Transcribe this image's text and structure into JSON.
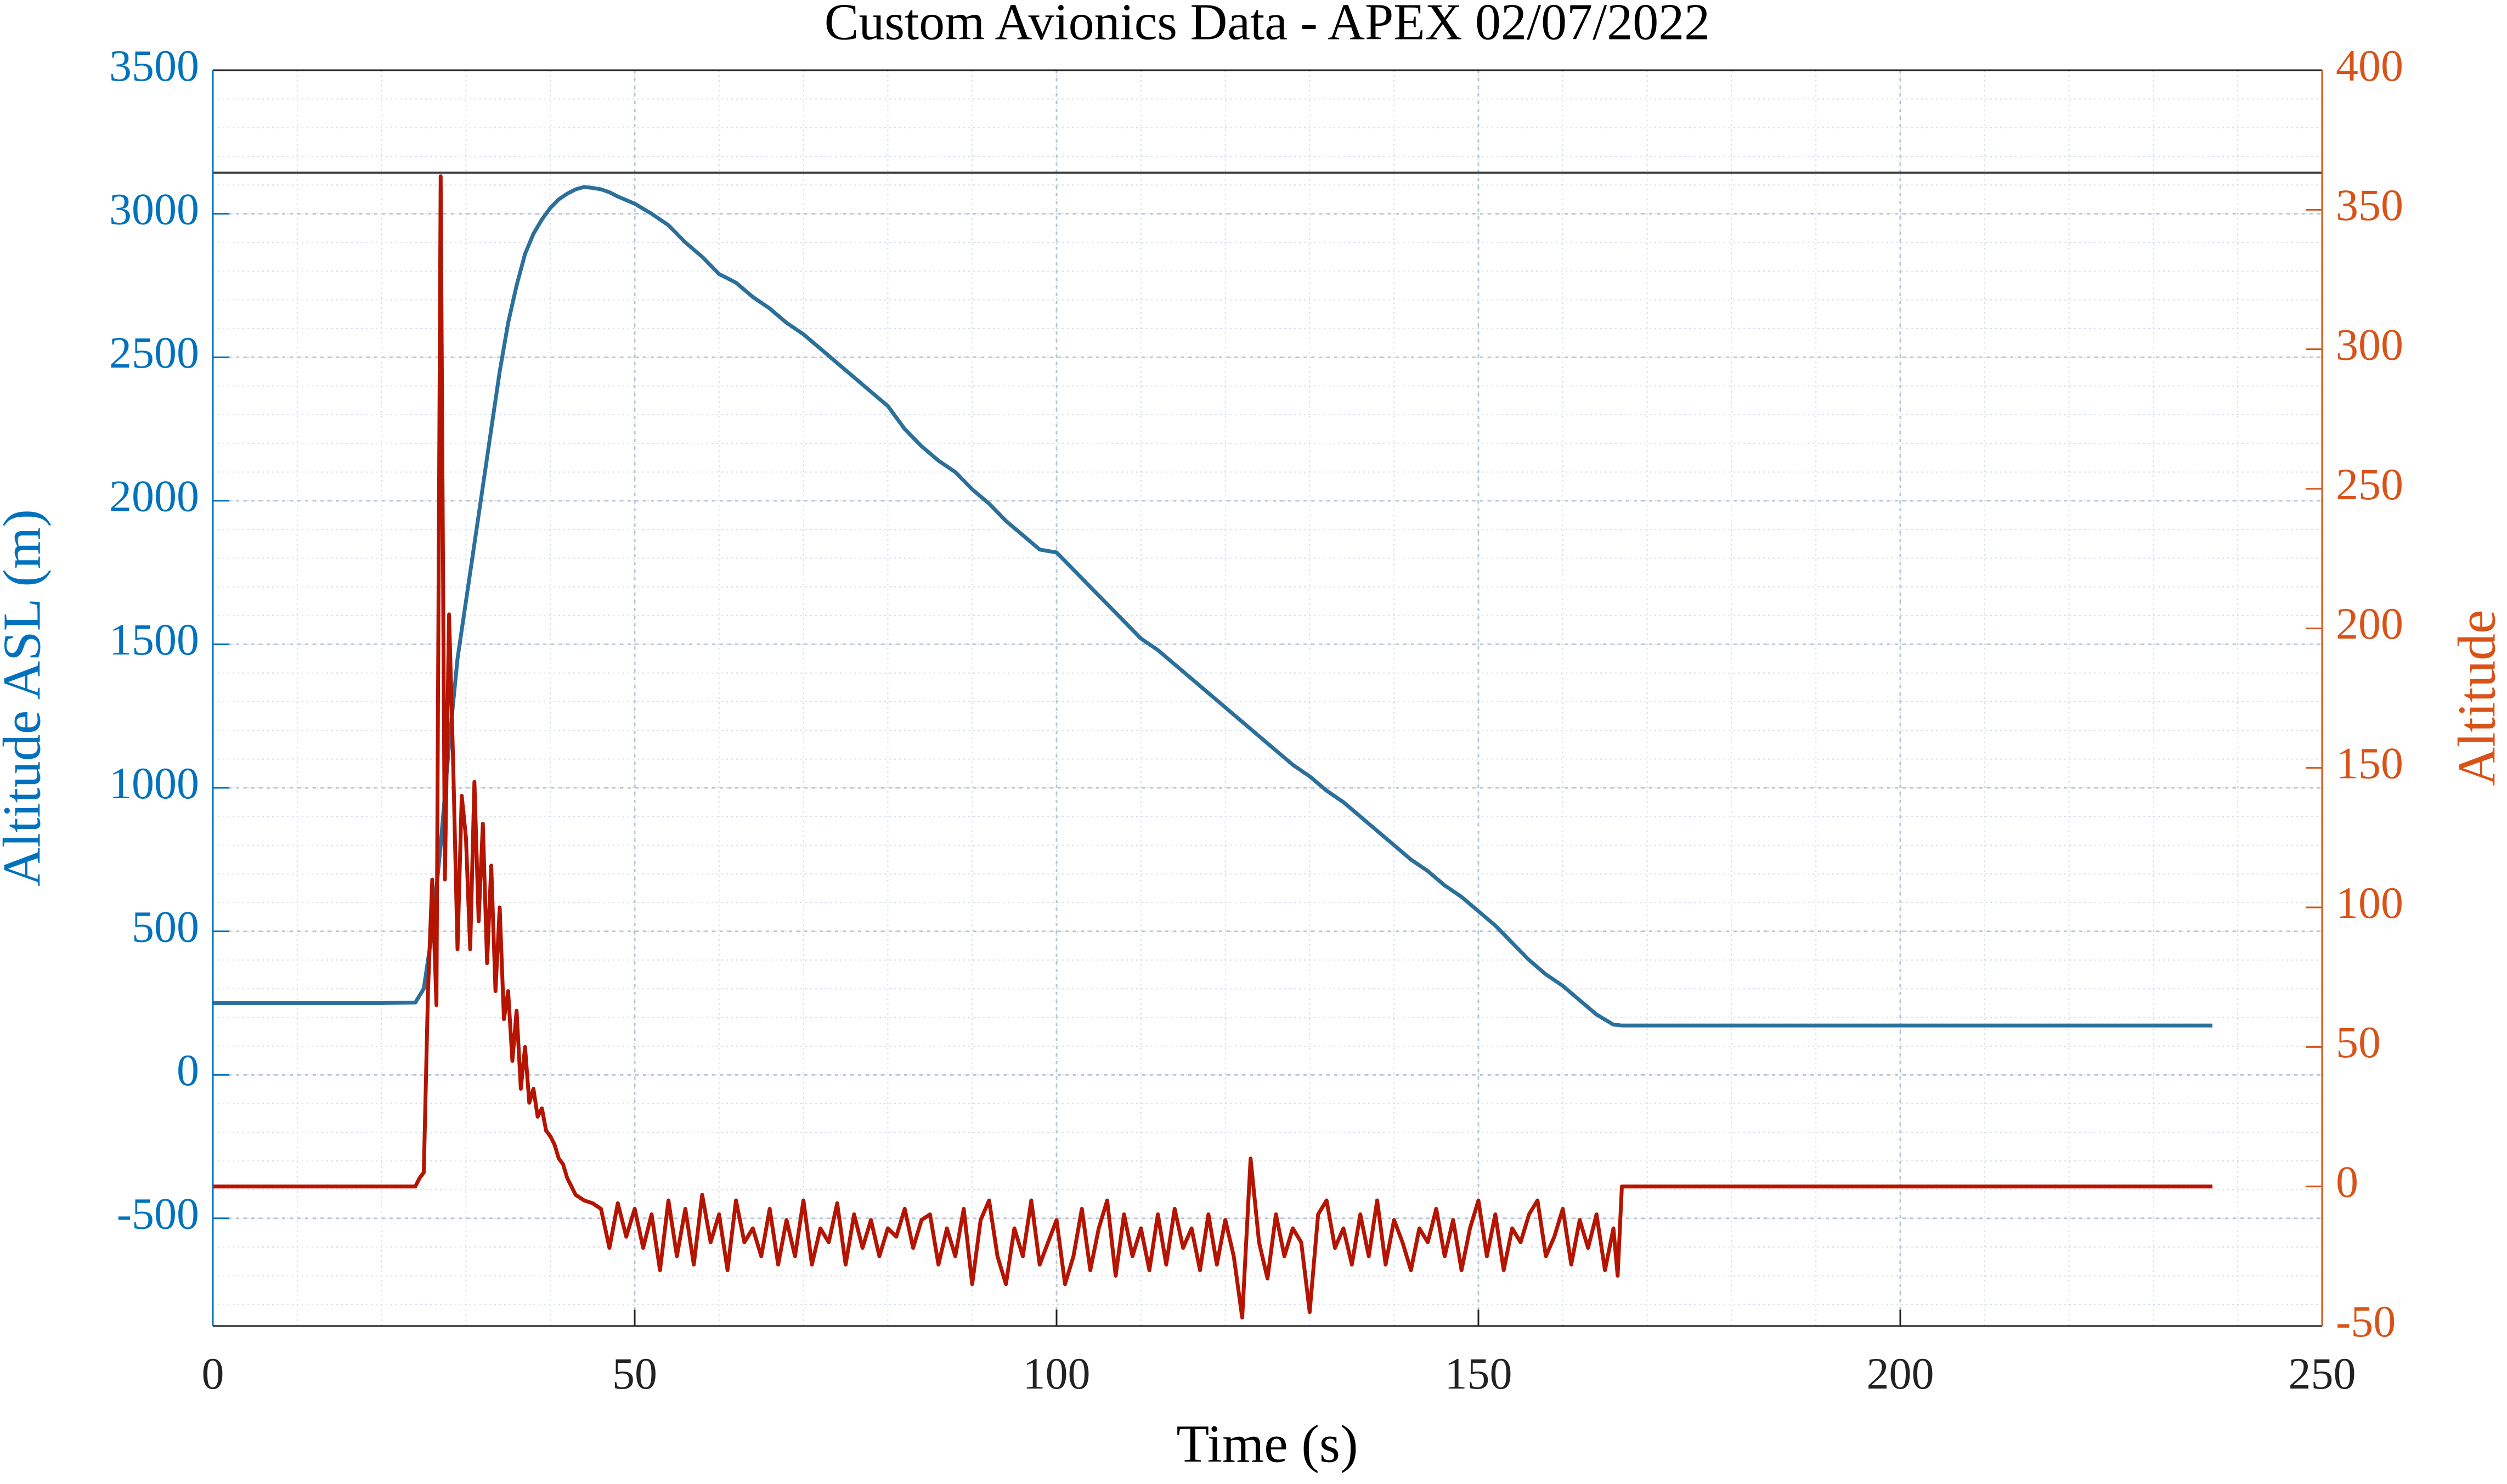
{
  "chart_data": {
    "type": "line",
    "title": "Custom Avionics Data - APEX 02/07/2022",
    "xlabel": "Time (s)",
    "ylabel": "Altitude ASL (m)",
    "y2label": "Altitude",
    "xlim": [
      0,
      250
    ],
    "xticks": [
      0,
      50,
      100,
      150,
      200,
      250
    ],
    "ylim": [
      -875,
      3500
    ],
    "yticks": [
      -500,
      0,
      500,
      1000,
      1500,
      2000,
      2500,
      3000,
      3500
    ],
    "y2lim": [
      -50,
      400
    ],
    "y2ticks": [
      -50,
      0,
      50,
      100,
      150,
      200,
      250,
      300,
      350,
      400
    ],
    "grid": true,
    "minor_grid": true,
    "ycolor": "#0072bd",
    "y2color": "#d95319",
    "reference_line": {
      "value": 3143,
      "color": "#3c3c3c"
    },
    "series": [
      {
        "color": "#2b6f9b",
        "axis": "y",
        "x": [
          0,
          10,
          20,
          24,
          25,
          26,
          27,
          28,
          29,
          30,
          31,
          32,
          33,
          34,
          35,
          36,
          37,
          38,
          39,
          40,
          41,
          42,
          43,
          44,
          45,
          46,
          47,
          48,
          50,
          52,
          54,
          56,
          58,
          60,
          62,
          64,
          66,
          68,
          70,
          72,
          74,
          76,
          78,
          80,
          82,
          84,
          86,
          88,
          90,
          92,
          94,
          96,
          98,
          100,
          102,
          104,
          106,
          108,
          110,
          112,
          114,
          116,
          118,
          120,
          122,
          124,
          126,
          128,
          130,
          132,
          134,
          136,
          138,
          140,
          142,
          144,
          146,
          148,
          150,
          152,
          154,
          156,
          158,
          160,
          162,
          164,
          166,
          167,
          180,
          200,
          220,
          237
        ],
        "values": [
          250,
          250,
          250,
          252,
          300,
          500,
          800,
          1150,
          1450,
          1650,
          1850,
          2050,
          2250,
          2450,
          2620,
          2750,
          2860,
          2930,
          2980,
          3020,
          3050,
          3070,
          3085,
          3093,
          3090,
          3085,
          3075,
          3060,
          3035,
          3000,
          2960,
          2900,
          2850,
          2790,
          2760,
          2710,
          2670,
          2620,
          2580,
          2530,
          2480,
          2430,
          2380,
          2330,
          2250,
          2190,
          2140,
          2100,
          2040,
          1990,
          1930,
          1880,
          1830,
          1820,
          1760,
          1700,
          1640,
          1580,
          1520,
          1480,
          1430,
          1380,
          1330,
          1280,
          1230,
          1180,
          1130,
          1080,
          1040,
          990,
          950,
          900,
          850,
          800,
          750,
          710,
          660,
          620,
          570,
          520,
          460,
          400,
          350,
          310,
          260,
          210,
          175,
          172,
          172,
          172,
          172,
          172
        ]
      },
      {
        "color": "#b51400",
        "axis": "y2",
        "x": [
          0,
          24,
          24.5,
          25,
          25.5,
          26,
          26.5,
          27,
          27.5,
          28,
          28.5,
          29,
          29.5,
          30,
          30.5,
          31,
          31.5,
          32,
          32.5,
          33,
          33.5,
          34,
          34.5,
          35,
          35.5,
          36,
          36.5,
          37,
          37.5,
          38,
          38.5,
          39,
          39.5,
          40,
          40.5,
          41,
          41.5,
          42,
          43,
          44,
          45,
          46,
          47,
          48,
          49,
          50,
          51,
          52,
          53,
          54,
          55,
          56,
          57,
          58,
          59,
          60,
          61,
          62,
          63,
          64,
          65,
          66,
          67,
          68,
          69,
          70,
          71,
          72,
          73,
          74,
          75,
          76,
          77,
          78,
          79,
          80,
          81,
          82,
          83,
          84,
          85,
          86,
          87,
          88,
          89,
          90,
          91,
          92,
          93,
          94,
          95,
          96,
          97,
          98,
          99,
          100,
          101,
          102,
          103,
          104,
          105,
          106,
          107,
          108,
          109,
          110,
          111,
          112,
          113,
          114,
          115,
          116,
          117,
          118,
          119,
          120,
          121,
          122,
          123,
          124,
          125,
          126,
          127,
          128,
          129,
          130,
          131,
          132,
          133,
          134,
          135,
          136,
          137,
          138,
          139,
          140,
          141,
          142,
          143,
          144,
          145,
          146,
          147,
          148,
          149,
          150,
          151,
          152,
          153,
          154,
          155,
          156,
          157,
          158,
          159,
          160,
          161,
          162,
          163,
          164,
          165,
          166,
          166.5,
          167,
          237
        ],
        "values": [
          0,
          0,
          3,
          5,
          70,
          110,
          65,
          362,
          110,
          205,
          150,
          85,
          140,
          125,
          85,
          145,
          95,
          130,
          80,
          115,
          70,
          100,
          60,
          70,
          45,
          63,
          35,
          50,
          30,
          35,
          25,
          28,
          20,
          18,
          15,
          10,
          8,
          3,
          -3,
          -5,
          -6,
          -8,
          -22,
          -6,
          -18,
          -8,
          -22,
          -10,
          -30,
          -5,
          -25,
          -8,
          -28,
          -3,
          -20,
          -10,
          -30,
          -5,
          -20,
          -15,
          -25,
          -8,
          -28,
          -12,
          -25,
          -5,
          -28,
          -15,
          -20,
          -6,
          -28,
          -10,
          -22,
          -12,
          -25,
          -15,
          -18,
          -8,
          -22,
          -12,
          -10,
          -28,
          -15,
          -25,
          -8,
          -35,
          -12,
          -5,
          -25,
          -35,
          -15,
          -25,
          -5,
          -28,
          -20,
          -12,
          -35,
          -25,
          -8,
          -30,
          -15,
          -5,
          -32,
          -10,
          -25,
          -15,
          -30,
          -10,
          -28,
          -8,
          -22,
          -15,
          -30,
          -10,
          -28,
          -12,
          -25,
          -47,
          10,
          -20,
          -33,
          -10,
          -25,
          -15,
          -20,
          -45,
          -10,
          -5,
          -22,
          -15,
          -28,
          -10,
          -25,
          -5,
          -28,
          -12,
          -20,
          -30,
          -15,
          -20,
          -8,
          -25,
          -12,
          -30,
          -15,
          -5,
          -25,
          -10,
          -30,
          -15,
          -20,
          -10,
          -5,
          -25,
          -18,
          -8,
          -28,
          -12,
          -22,
          -10,
          -30,
          -15,
          -32,
          0,
          0
        ]
      }
    ]
  }
}
